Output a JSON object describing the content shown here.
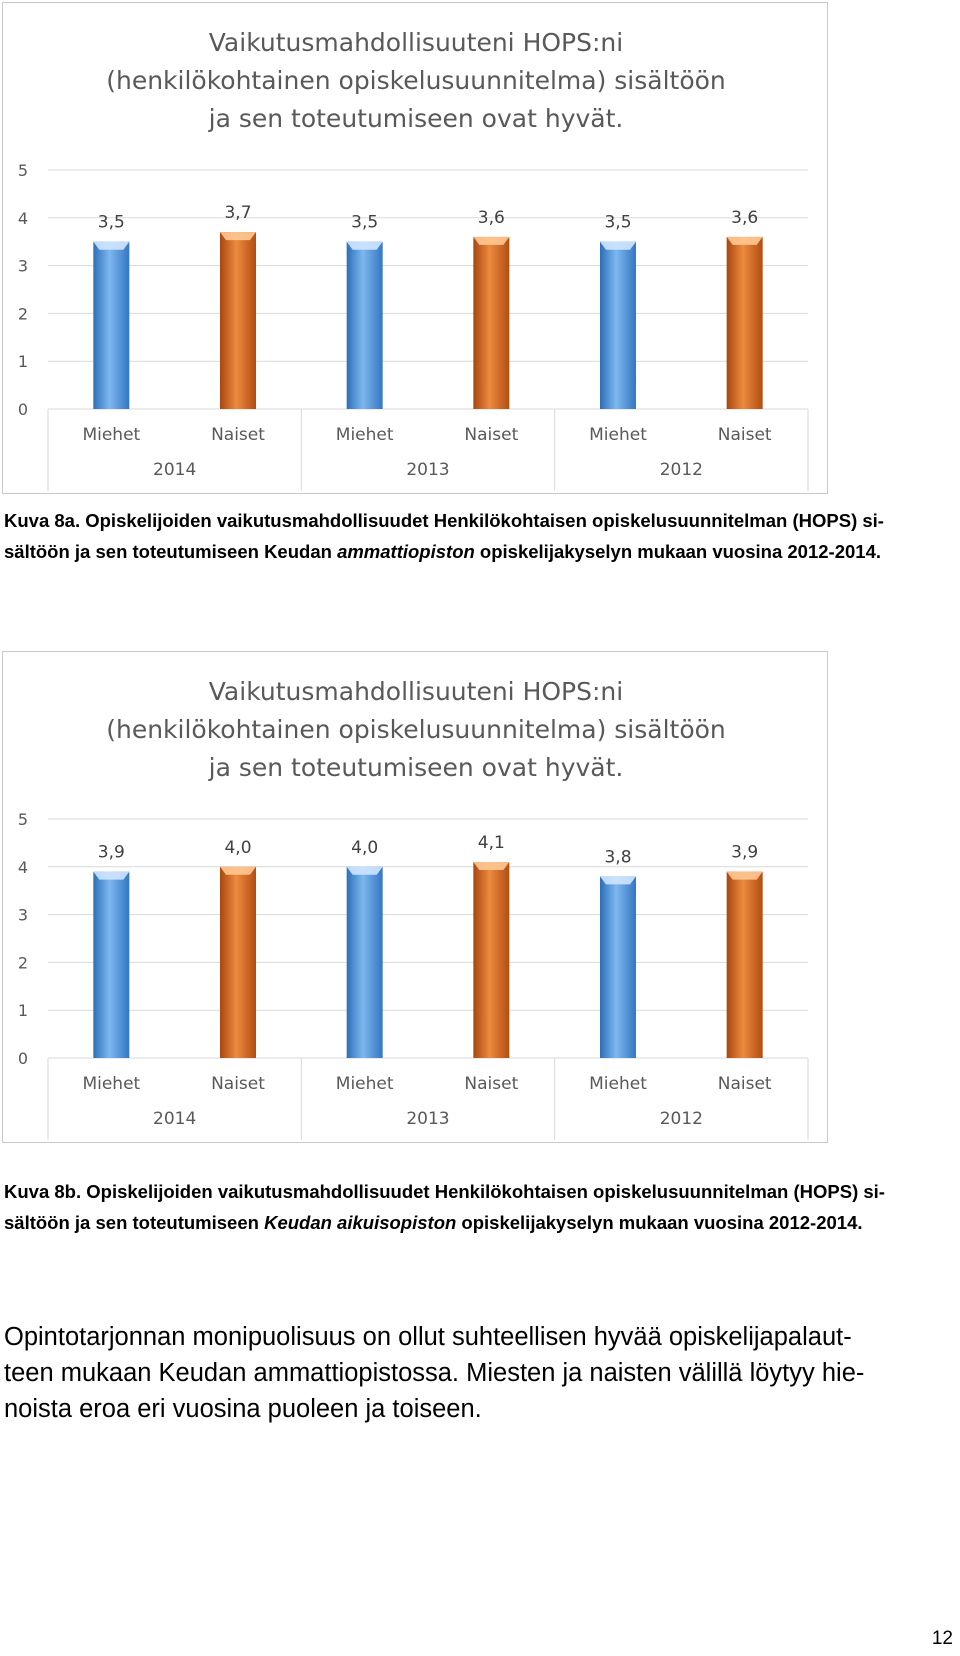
{
  "chart_data": [
    {
      "type": "bar",
      "title_lines": [
        "Vaikutusmahdollisuuteni HOPS:ni",
        "(henkilökohtainen opiskelusuunnitelma) sisältöön",
        "ja sen toteutumiseen ovat hyvät."
      ],
      "groups": [
        "2014",
        "2013",
        "2012"
      ],
      "categories": [
        "Miehet",
        "Naiset",
        "Miehet",
        "Naiset",
        "Miehet",
        "Naiset"
      ],
      "values": [
        3.5,
        3.7,
        3.5,
        3.6,
        3.5,
        3.6
      ],
      "value_labels": [
        "3,5",
        "3,7",
        "3,5",
        "3,6",
        "3,5",
        "3,6"
      ],
      "yticks": [
        "0",
        "1",
        "2",
        "3",
        "4",
        "5"
      ],
      "ylim": [
        0,
        5
      ],
      "grid": true,
      "colors": {
        "Miehet": "#4a8fd6",
        "Naiset": "#d2621a"
      }
    },
    {
      "type": "bar",
      "title_lines": [
        "Vaikutusmahdollisuuteni HOPS:ni",
        "(henkilökohtainen opiskelusuunnitelma) sisältöön",
        "ja sen toteutumiseen ovat hyvät."
      ],
      "groups": [
        "2014",
        "2013",
        "2012"
      ],
      "categories": [
        "Miehet",
        "Naiset",
        "Miehet",
        "Naiset",
        "Miehet",
        "Naiset"
      ],
      "values": [
        3.9,
        4.0,
        4.0,
        4.1,
        3.8,
        3.9
      ],
      "value_labels": [
        "3,9",
        "4,0",
        "4,0",
        "4,1",
        "3,8",
        "3,9"
      ],
      "yticks": [
        "0",
        "1",
        "2",
        "3",
        "4",
        "5"
      ],
      "ylim": [
        0,
        5
      ],
      "grid": true,
      "colors": {
        "Miehet": "#4a8fd6",
        "Naiset": "#d2621a"
      }
    }
  ],
  "captions": {
    "a": {
      "prefix": "Kuva 8a. Opiskelijoiden vaikutusmahdollisuudet Henkilökohtaisen opiskelusuunnitelman (HOPS) si-",
      "line2_start": "sältöön ja sen toteutumiseen Keudan ",
      "line2_italic": "ammattiopiston",
      "line2_end": " opiskelijakyselyn mukaan vuosina 2012-2014."
    },
    "b": {
      "prefix": "Kuva 8b. Opiskelijoiden vaikutusmahdollisuudet Henkilökohtaisen opiskelusuunnitelman (HOPS) si-",
      "line2_start": "sältöön ja sen toteutumiseen ",
      "line2_italic": "Keudan aikuisopiston",
      "line2_end": " opiskelijakyselyn mukaan vuosina 2012-2014."
    }
  },
  "paragraph": [
    "Opintotarjonnan monipuolisuus on ollut suhteellisen hyvää opiskelijapalaut-",
    "teen mukaan Keudan ammattiopistossa. Miesten ja naisten välillä löytyy hie-",
    "noista eroa eri vuosina puoleen ja toiseen."
  ],
  "page_number": "12"
}
